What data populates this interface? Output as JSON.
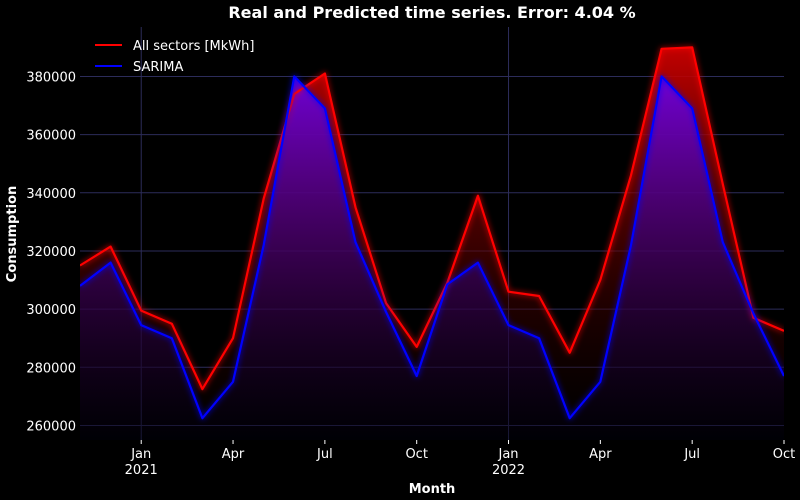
{
  "chart_data": {
    "type": "line",
    "title": "Real and Predicted time series. Error: 4.04 %",
    "xlabel": "Month",
    "ylabel": "Consumption",
    "x": [
      "2020-11",
      "2020-12",
      "2021-01",
      "2021-02",
      "2021-03",
      "2021-04",
      "2021-05",
      "2021-06",
      "2021-07",
      "2021-08",
      "2021-09",
      "2021-10",
      "2021-11",
      "2021-12",
      "2022-01",
      "2022-02",
      "2022-03",
      "2022-04",
      "2022-05",
      "2022-06",
      "2022-07",
      "2022-08",
      "2022-09",
      "2022-10"
    ],
    "xlim": [
      "2020-11",
      "2022-10"
    ],
    "ylim": [
      255000,
      397000
    ],
    "y_ticks": [
      260000,
      280000,
      300000,
      320000,
      340000,
      360000,
      380000
    ],
    "y_tick_labels": [
      "260000",
      "280000",
      "300000",
      "320000",
      "340000",
      "360000",
      "380000"
    ],
    "x_ticks": [
      {
        "at": "2021-01",
        "label": "Jan",
        "sublabel": "2021",
        "major": true
      },
      {
        "at": "2021-04",
        "label": "Apr",
        "sublabel": "",
        "major": false
      },
      {
        "at": "2021-07",
        "label": "Jul",
        "sublabel": "",
        "major": false
      },
      {
        "at": "2021-10",
        "label": "Oct",
        "sublabel": "",
        "major": false
      },
      {
        "at": "2022-01",
        "label": "Jan",
        "sublabel": "2022",
        "major": true
      },
      {
        "at": "2022-04",
        "label": "Apr",
        "sublabel": "",
        "major": false
      },
      {
        "at": "2022-07",
        "label": "Jul",
        "sublabel": "",
        "major": false
      },
      {
        "at": "2022-10",
        "label": "Oct",
        "sublabel": "",
        "major": false
      }
    ],
    "grid": true,
    "legend_position": "top-left",
    "series": [
      {
        "name": "All sectors [MkWh]",
        "color": "#ff0000",
        "values": [
          315000,
          321500,
          299500,
          295000,
          272500,
          290000,
          338000,
          374000,
          381000,
          335000,
          302000,
          287000,
          309000,
          339000,
          306000,
          304500,
          285000,
          310000,
          346000,
          389500,
          390000,
          343000,
          297000,
          292500
        ]
      },
      {
        "name": "SARIMA",
        "color": "#0000ff",
        "values": [
          308000,
          316000,
          294500,
          290000,
          262500,
          275000,
          322000,
          380000,
          369000,
          323000,
          299000,
          277000,
          308500,
          316000,
          294500,
          290000,
          262500,
          275000,
          322000,
          380000,
          369000,
          323000,
          298500,
          277000
        ]
      }
    ]
  }
}
